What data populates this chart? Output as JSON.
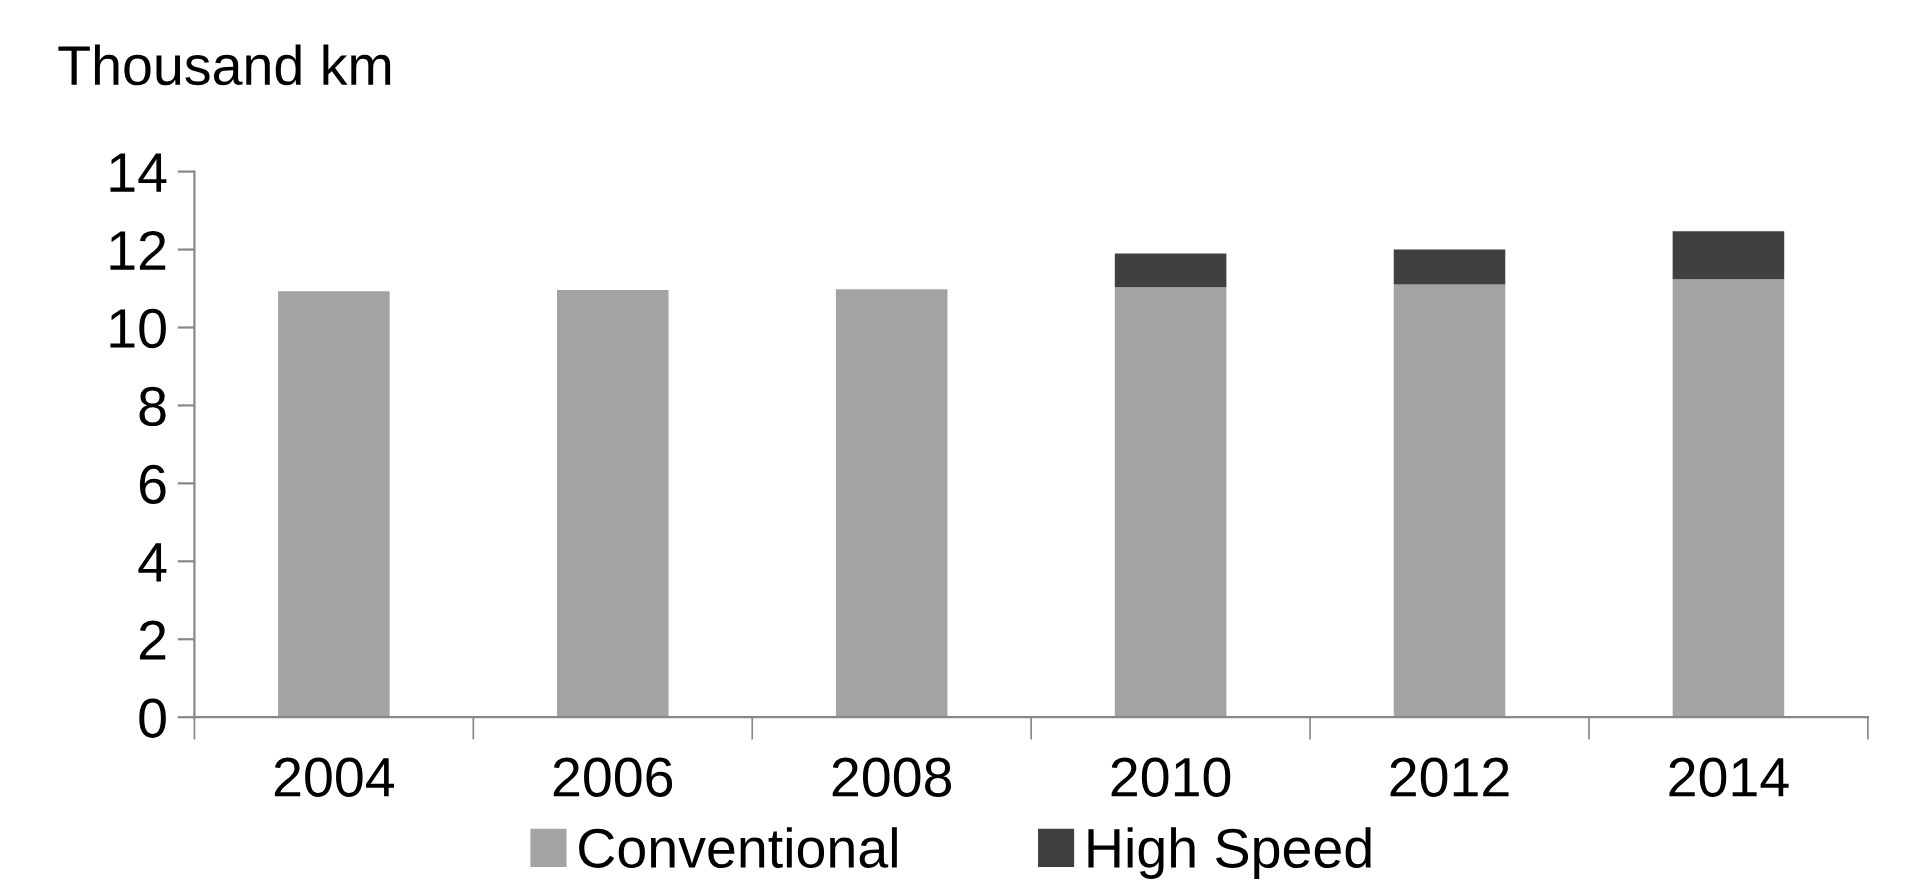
{
  "chart_data": {
    "type": "bar",
    "stacked": true,
    "ylabel": "Thousand km",
    "categories": [
      "2004",
      "2006",
      "2008",
      "2010",
      "2012",
      "2014"
    ],
    "series": [
      {
        "name": "Conventional",
        "color": "#a3a3a3",
        "values": [
          10.93,
          10.96,
          10.98,
          11.03,
          11.1,
          11.24
        ]
      },
      {
        "name": "High Speed",
        "color": "#404040",
        "values": [
          0,
          0,
          0,
          0.87,
          0.9,
          1.23
        ]
      }
    ],
    "ylim": [
      0,
      14
    ],
    "yticks": [
      0,
      2,
      4,
      6,
      8,
      10,
      12,
      14
    ],
    "grid": false,
    "legend": "bottom"
  }
}
